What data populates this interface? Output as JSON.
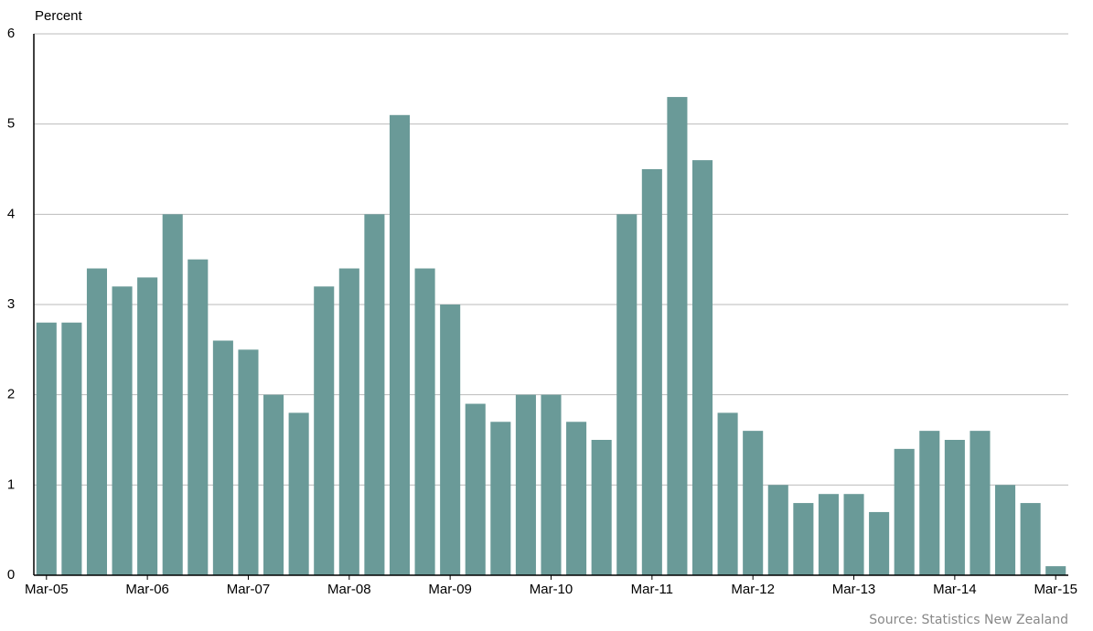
{
  "chart_data": {
    "type": "bar",
    "y_label": "Percent",
    "source": "Source: Statistics New Zealand",
    "categories": [
      "Mar-05",
      null,
      null,
      null,
      "Mar-06",
      null,
      null,
      null,
      "Mar-07",
      null,
      null,
      null,
      "Mar-08",
      null,
      null,
      null,
      "Mar-09",
      null,
      null,
      null,
      "Mar-10",
      null,
      null,
      null,
      "Mar-11",
      null,
      null,
      null,
      "Mar-12",
      null,
      null,
      null,
      "Mar-13",
      null,
      null,
      null,
      "Mar-14",
      null,
      null,
      null,
      "Mar-15"
    ],
    "values": [
      2.8,
      2.8,
      3.4,
      3.2,
      3.3,
      4.0,
      3.5,
      2.6,
      2.5,
      2.0,
      1.8,
      3.2,
      3.4,
      4.0,
      5.1,
      3.4,
      3.0,
      1.9,
      1.7,
      2.0,
      2.0,
      1.7,
      1.5,
      4.0,
      4.5,
      5.3,
      4.6,
      1.8,
      1.6,
      1.0,
      0.8,
      0.9,
      0.9,
      0.7,
      1.4,
      1.6,
      1.5,
      1.6,
      1.0,
      0.8,
      0.1
    ],
    "color": "#6a9a98",
    "ylim": [
      0,
      6
    ],
    "yticks": [
      0,
      1,
      2,
      3,
      4,
      5,
      6
    ],
    "grid": true
  }
}
